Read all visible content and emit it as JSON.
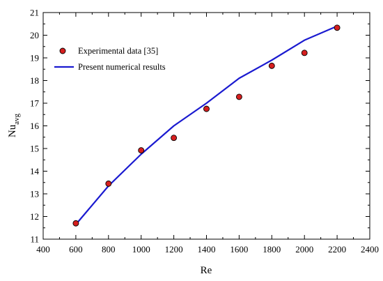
{
  "chart_data": {
    "type": "line",
    "xlabel": "Re",
    "ylabel": "Nu",
    "ylabel_sub": "avg",
    "xlim": [
      400,
      2400
    ],
    "ylim": [
      11,
      21
    ],
    "x_ticks": [
      "400",
      "600",
      "800",
      "1000",
      "1200",
      "1400",
      "1600",
      "1800",
      "2000",
      "2200",
      "2400"
    ],
    "y_ticks": [
      "11",
      "12",
      "13",
      "14",
      "15",
      "16",
      "17",
      "18",
      "19",
      "20",
      "21"
    ],
    "legend_position": "top-left",
    "series": [
      {
        "name": "Experimental data [35]",
        "kind": "scatter",
        "color": "#d61f1f",
        "x": [
          600,
          800,
          1000,
          1200,
          1400,
          1600,
          1800,
          2000,
          2200
        ],
        "y": [
          11.7,
          13.45,
          14.92,
          15.47,
          16.75,
          17.28,
          18.65,
          19.22,
          20.33
        ]
      },
      {
        "name": "Present numerical results",
        "kind": "line",
        "color": "#1a1ad0",
        "x": [
          600,
          800,
          1000,
          1200,
          1400,
          1600,
          1800,
          2000,
          2200
        ],
        "y": [
          11.65,
          13.35,
          14.75,
          16.0,
          17.0,
          18.1,
          18.9,
          19.78,
          20.4
        ]
      }
    ]
  }
}
